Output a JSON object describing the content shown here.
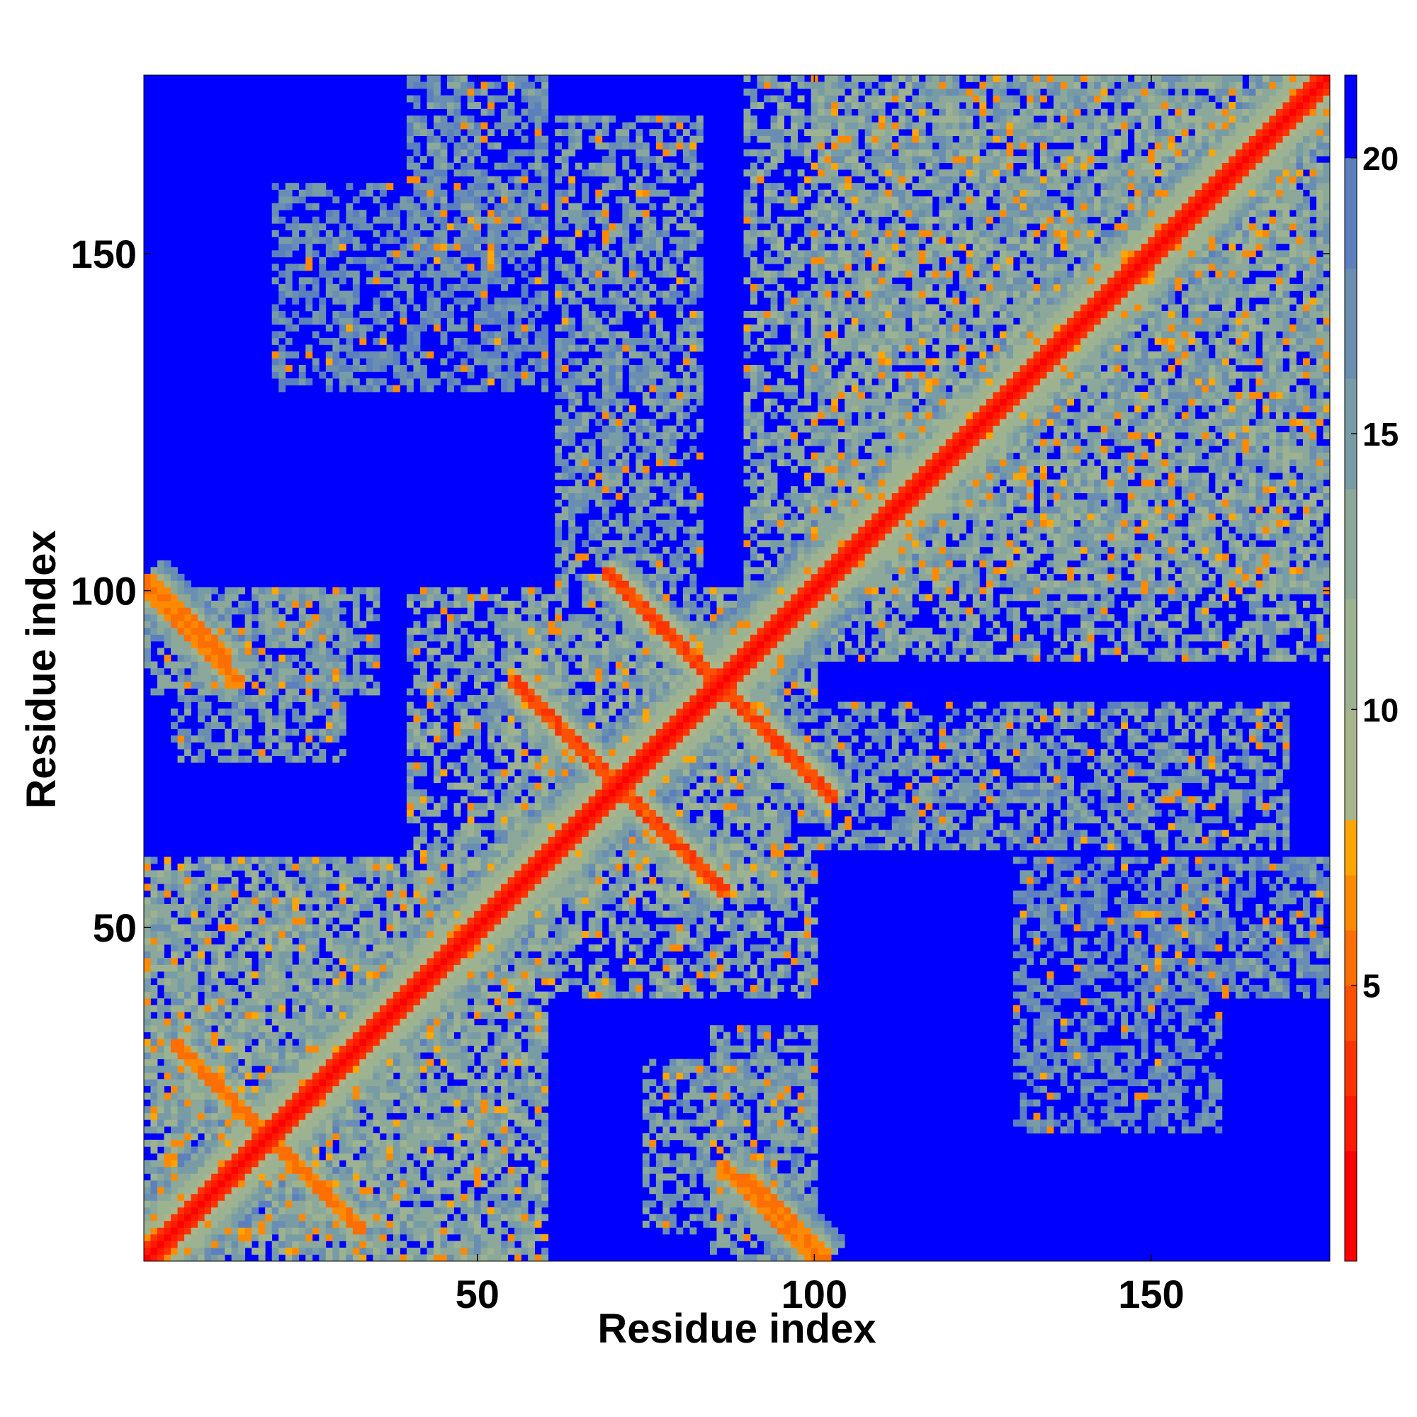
{
  "chart_data": {
    "type": "heatmap",
    "title": "",
    "xlabel": "Residue index",
    "ylabel": "Residue index",
    "n_residues": 176,
    "xlim": [
      1,
      176
    ],
    "ylim": [
      1,
      176
    ],
    "x_ticks": [
      50,
      100,
      150
    ],
    "y_ticks": [
      50,
      100,
      150
    ],
    "colorbar": {
      "ticks": [
        5,
        10,
        15,
        20
      ],
      "range": [
        0,
        21.5
      ],
      "levels": [
        {
          "max": 2,
          "color": "#ff0000"
        },
        {
          "max": 3,
          "color": "#ff1a00"
        },
        {
          "max": 4,
          "color": "#ff3300"
        },
        {
          "max": 5,
          "color": "#ff5000"
        },
        {
          "max": 6,
          "color": "#ff6e00"
        },
        {
          "max": 7,
          "color": "#ff8a00"
        },
        {
          "max": 8,
          "color": "#ffa500"
        },
        {
          "max": 10,
          "color": "#a9b58a"
        },
        {
          "max": 12,
          "color": "#9db290"
        },
        {
          "max": 14,
          "color": "#8ba89a"
        },
        {
          "max": 16,
          "color": "#789ca6"
        },
        {
          "max": 18,
          "color": "#6a8eb2"
        },
        {
          "max": 20,
          "color": "#5b80bd"
        },
        {
          "max": 21.5,
          "color": "#0000ff"
        }
      ]
    },
    "features": [
      {
        "kind": "diagonal",
        "from": 1,
        "to": 176
      },
      {
        "kind": "antiparallel",
        "center": [
          71,
          71
        ],
        "length": 16,
        "strength": 3.5
      },
      {
        "kind": "antiparallel",
        "center": [
          86,
          86
        ],
        "length": 17,
        "strength": 3.5
      },
      {
        "kind": "antiparallel",
        "center": [
          14,
          24
        ],
        "length": 9,
        "strength": 5
      },
      {
        "kind": "antiparallel",
        "center": [
          93,
          8
        ],
        "length": 7,
        "strength": 5
      },
      {
        "kind": "antiparallel",
        "center": [
          7,
          96
        ],
        "length": 6,
        "strength": 5
      },
      {
        "kind": "contact_band",
        "x": [
          55,
          100
        ],
        "y": [
          40,
          95
        ],
        "strength": 11
      },
      {
        "kind": "contact_band",
        "x": [
          90,
          176
        ],
        "y": [
          100,
          176
        ],
        "strength": 11
      },
      {
        "kind": "contact_band",
        "x": [
          1,
          60
        ],
        "y": [
          1,
          60
        ],
        "strength": 11
      },
      {
        "kind": "contact_band",
        "x": [
          100,
          170
        ],
        "y": [
          62,
          83
        ],
        "strength": 12
      },
      {
        "kind": "contact_band",
        "x": [
          40,
          60
        ],
        "y": [
          150,
          176
        ],
        "strength": 13
      },
      {
        "kind": "contact_band",
        "x": [
          1,
          35
        ],
        "y": [
          85,
          100
        ],
        "strength": 12
      },
      {
        "kind": "contact_band",
        "x": [
          130,
          160
        ],
        "y": [
          20,
          60
        ],
        "strength": 14
      },
      {
        "kind": "contact_band",
        "x": [
          75,
          100
        ],
        "y": [
          5,
          30
        ],
        "strength": 12
      }
    ]
  }
}
